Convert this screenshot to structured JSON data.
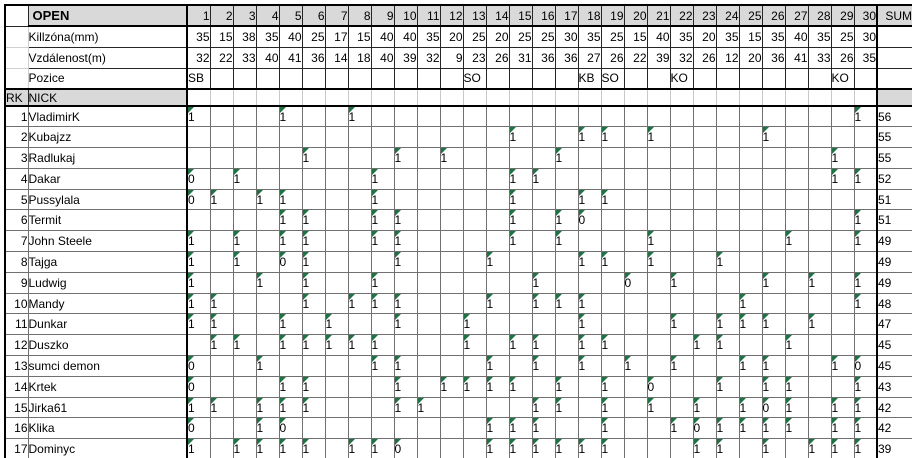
{
  "colors": {
    "header_bg": "#d9d9d9",
    "gold_bg": "#ffd966",
    "light_gold_bg": "#ffe699",
    "error_marker": "#1f7244"
  },
  "header": {
    "corner": "",
    "open": "OPEN",
    "sum": "SUM",
    "columns": [
      "1",
      "2",
      "3",
      "4",
      "5",
      "6",
      "7",
      "8",
      "9",
      "10",
      "11",
      "12",
      "13",
      "14",
      "15",
      "16",
      "17",
      "18",
      "19",
      "20",
      "21",
      "22",
      "23",
      "24",
      "25",
      "26",
      "27",
      "28",
      "29",
      "30"
    ]
  },
  "info_rows": [
    {
      "label": "Killzóna(mm)",
      "values": [
        "35",
        "15",
        "38",
        "35",
        "40",
        "25",
        "17",
        "15",
        "40",
        "40",
        "35",
        "20",
        "25",
        "20",
        "25",
        "25",
        "30",
        "35",
        "25",
        "15",
        "40",
        "35",
        "20",
        "35",
        "15",
        "35",
        "40",
        "35",
        "25",
        "30"
      ]
    },
    {
      "label": "Vzdálenost(m)",
      "values": [
        "32",
        "22",
        "33",
        "40",
        "41",
        "36",
        "14",
        "18",
        "40",
        "39",
        "32",
        "9",
        "23",
        "26",
        "31",
        "36",
        "36",
        "27",
        "26",
        "22",
        "39",
        "32",
        "26",
        "12",
        "20",
        "36",
        "41",
        "33",
        "26",
        "35"
      ]
    },
    {
      "label": "Pozice",
      "values": [
        "SB",
        "",
        "",
        "",
        "",
        "",
        "",
        "",
        "",
        "",
        "",
        "",
        "SO",
        "",
        "",
        "",
        "",
        "KB",
        "SO",
        "",
        "",
        "KO",
        "",
        "",
        "",
        "",
        "",
        "",
        "KO",
        ""
      ]
    }
  ],
  "rank_header": {
    "rk": "RK",
    "nick": "NICK"
  },
  "players": [
    {
      "rank": "1",
      "nick": "VladimirK",
      "sum": "56",
      "marks": {
        "1": "1",
        "5": "1",
        "8": "1",
        "30": "1"
      }
    },
    {
      "rank": "2",
      "nick": "Kubajzz",
      "sum": "55",
      "marks": {
        "15": "1",
        "18": "1",
        "19": "1",
        "21": "1",
        "26": "1"
      }
    },
    {
      "rank": "3",
      "nick": "Radlukaj",
      "sum": "55",
      "marks": {
        "6": "1",
        "10": "1",
        "12": "1",
        "17": "1",
        "29": "1"
      }
    },
    {
      "rank": "4",
      "nick": "Dakar",
      "sum": "52",
      "marks": {
        "1": "0",
        "3": "1",
        "9": "1",
        "15": "1",
        "16": "1",
        "29": "1",
        "30": "1"
      }
    },
    {
      "rank": "5",
      "nick": "Pussylala",
      "sum": "51",
      "marks": {
        "1": "0",
        "2": "1",
        "4": "1",
        "5": "1",
        "9": "1",
        "15": "1",
        "18": "1",
        "19": "1"
      }
    },
    {
      "rank": "6",
      "nick": "Termit",
      "sum": "51",
      "marks": {
        "5": "1",
        "6": "1",
        "9": "1",
        "10": "1",
        "15": "1",
        "17": "1",
        "18": "0",
        "30": "1"
      }
    },
    {
      "rank": "7",
      "nick": "John Steele",
      "sum": "49",
      "marks": {
        "1": "1",
        "3": "1",
        "5": "1",
        "6": "1",
        "9": "1",
        "10": "1",
        "15": "1",
        "17": "1",
        "21": "1",
        "27": "1",
        "30": "1"
      }
    },
    {
      "rank": "8",
      "nick": "Tajga",
      "sum": "49",
      "marks": {
        "1": "1",
        "3": "1",
        "5": "0",
        "6": "1",
        "10": "1",
        "14": "1",
        "18": "1",
        "19": "1",
        "21": "1",
        "24": "1"
      }
    },
    {
      "rank": "9",
      "nick": "Ludwig",
      "sum": "49",
      "marks": {
        "1": "1",
        "4": "1",
        "6": "1",
        "9": "1",
        "16": "1",
        "20": "0",
        "22": "1",
        "26": "1",
        "28": "1",
        "30": "1"
      }
    },
    {
      "rank": "10",
      "nick": "Mandy",
      "sum": "48",
      "marks": {
        "1": "1",
        "2": "1",
        "6": "1",
        "8": "1",
        "9": "1",
        "10": "1",
        "14": "1",
        "16": "1",
        "17": "1",
        "18": "1",
        "25": "1",
        "30": "1"
      }
    },
    {
      "rank": "11",
      "nick": "Dunkar",
      "sum": "47",
      "marks": {
        "1": "1",
        "2": "1",
        "5": "1",
        "7": "1",
        "10": "1",
        "13": "1",
        "18": "1",
        "22": "1",
        "24": "1",
        "25": "1",
        "26": "1",
        "28": "1"
      }
    },
    {
      "rank": "12",
      "nick": "Duszko",
      "sum": "45",
      "marks": {
        "2": "1",
        "3": "1",
        "5": "1",
        "6": "1",
        "7": "1",
        "8": "1",
        "9": "1",
        "13": "1",
        "15": "1",
        "16": "1",
        "18": "1",
        "19": "1",
        "23": "1",
        "24": "1",
        "27": "1"
      }
    },
    {
      "rank": "13",
      "nick": "sumci demon",
      "sum": "45",
      "marks": {
        "1": "0",
        "4": "1",
        "9": "1",
        "10": "1",
        "14": "1",
        "16": "1",
        "18": "1",
        "20": "1",
        "22": "1",
        "25": "1",
        "26": "1",
        "29": "1",
        "30": "0"
      }
    },
    {
      "rank": "14",
      "nick": "Krtek",
      "sum": "43",
      "marks": {
        "1": "0",
        "5": "1",
        "6": "1",
        "10": "1",
        "12": "1",
        "13": "1",
        "14": "1",
        "15": "1",
        "17": "1",
        "19": "1",
        "21": "0",
        "24": "1",
        "26": "1",
        "27": "1",
        "30": "1"
      }
    },
    {
      "rank": "15",
      "nick": "Jirka61",
      "sum": "42",
      "marks": {
        "1": "1",
        "2": "1",
        "4": "1",
        "5": "1",
        "6": "1",
        "10": "1",
        "11": "1",
        "16": "1",
        "17": "1",
        "19": "1",
        "21": "1",
        "23": "1",
        "25": "1",
        "26": "0",
        "27": "1",
        "29": "1",
        "30": "1"
      }
    },
    {
      "rank": "16",
      "nick": "Klika",
      "sum": "42",
      "marks": {
        "1": "0",
        "4": "1",
        "5": "0",
        "14": "1",
        "15": "1",
        "16": "1",
        "19": "1",
        "22": "1",
        "23": "0",
        "24": "1",
        "25": "1",
        "26": "1",
        "27": "1",
        "29": "1",
        "30": "1"
      }
    },
    {
      "rank": "17",
      "nick": "Dominyc",
      "sum": "39",
      "marks": {
        "1": "1",
        "3": "1",
        "4": "1",
        "5": "1",
        "6": "1",
        "8": "1",
        "9": "1",
        "10": "0",
        "14": "1",
        "15": "1",
        "16": "1",
        "17": "1",
        "18": "1",
        "19": "1",
        "23": "1",
        "24": "1",
        "26": "1",
        "28": "1",
        "29": "1",
        "30": "1"
      }
    }
  ]
}
